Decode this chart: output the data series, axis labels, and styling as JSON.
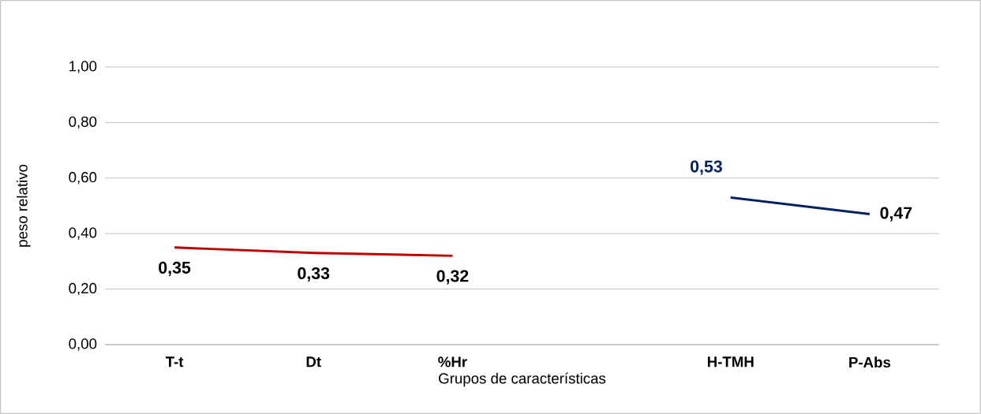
{
  "chart_data": {
    "type": "line",
    "xlabel": "Grupos de características",
    "ylabel": "peso relativo",
    "categories": [
      "T-t",
      "Dt",
      "%Hr",
      null,
      "H-TMH",
      "P-Abs"
    ],
    "series": [
      {
        "color": "#c00000",
        "values": [
          0.35,
          0.33,
          0.32,
          null,
          null,
          null
        ],
        "value_labels": [
          "0,35",
          "0,33",
          "0,32",
          null,
          null,
          null
        ]
      },
      {
        "color": "#002060",
        "values": [
          null,
          null,
          null,
          null,
          0.53,
          0.47
        ],
        "value_labels": [
          null,
          null,
          null,
          null,
          "0,53",
          "0,47"
        ]
      }
    ],
    "ylim": [
      0,
      1
    ],
    "yticks": [
      {
        "value": 0,
        "label": "0,00"
      },
      {
        "value": 0.2,
        "label": "0,20"
      },
      {
        "value": 0.4,
        "label": "0,40"
      },
      {
        "value": 0.6,
        "label": "0,60"
      },
      {
        "value": 0.8,
        "label": "0,80"
      },
      {
        "value": 1,
        "label": "1,00"
      }
    ],
    "grid": "y",
    "marker": "none",
    "line_style": "solid"
  }
}
